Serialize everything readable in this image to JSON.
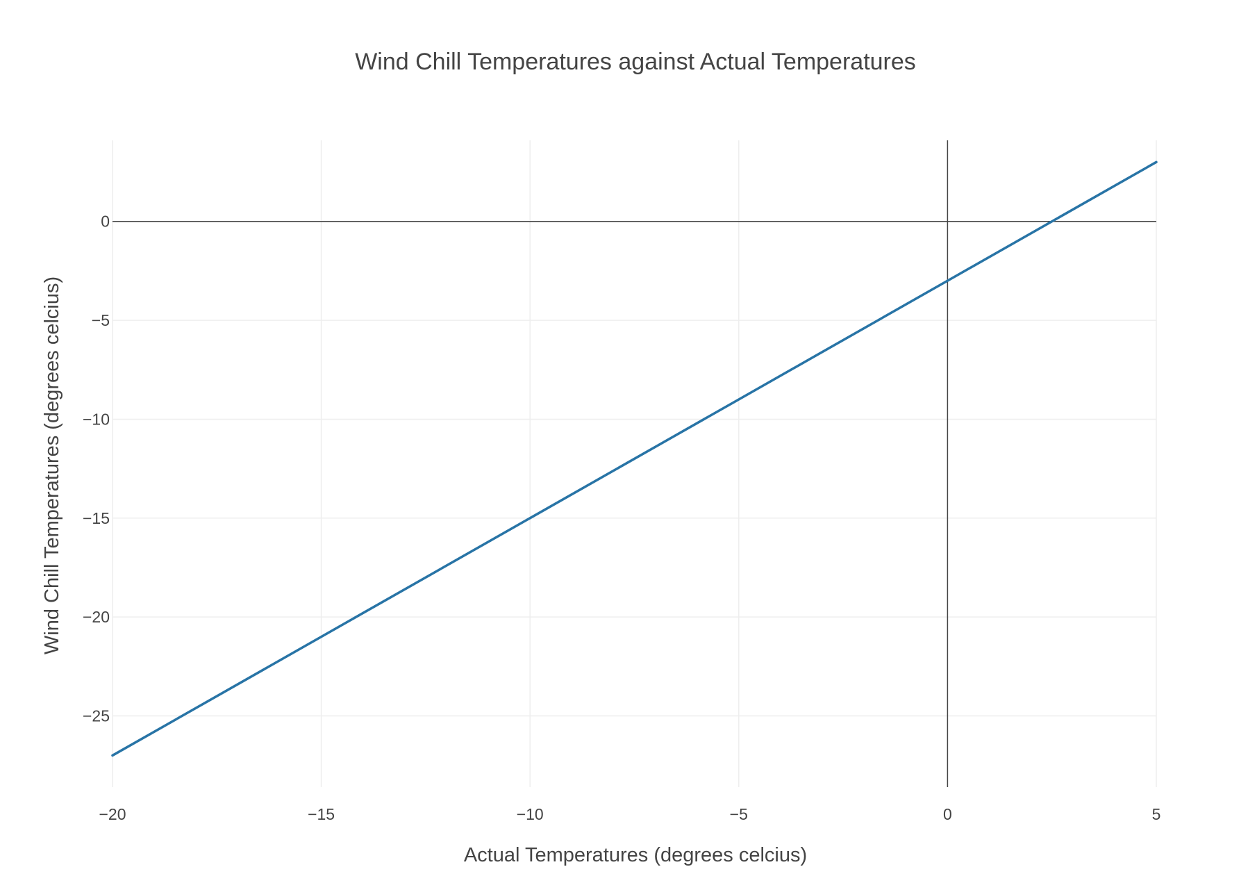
{
  "chart_data": {
    "type": "line",
    "title": "Wind Chill Temperatures against Actual Temperatures",
    "xlabel": "Actual Temperatures (degrees celcius)",
    "ylabel": "Wind Chill Temperatures (degrees celcius)",
    "xlim": [
      -20,
      5
    ],
    "ylim": [
      -28.6,
      4.1
    ],
    "x_ticks": [
      -20,
      -15,
      -10,
      -5,
      0,
      5
    ],
    "x_tick_labels": [
      "−20",
      "−15",
      "−10",
      "−5",
      "0",
      "5"
    ],
    "y_ticks": [
      -25,
      -20,
      -15,
      -10,
      -5,
      0
    ],
    "y_tick_labels": [
      "−25",
      "−20",
      "−15",
      "−10",
      "−5",
      "0"
    ],
    "grid": true,
    "zero_lines": true,
    "series": [
      {
        "color": "#2874a6",
        "x": [
          -20,
          -15,
          -10,
          -5,
          0,
          5
        ],
        "y": [
          -27,
          -21,
          -15,
          -9,
          -3,
          3
        ]
      }
    ]
  }
}
